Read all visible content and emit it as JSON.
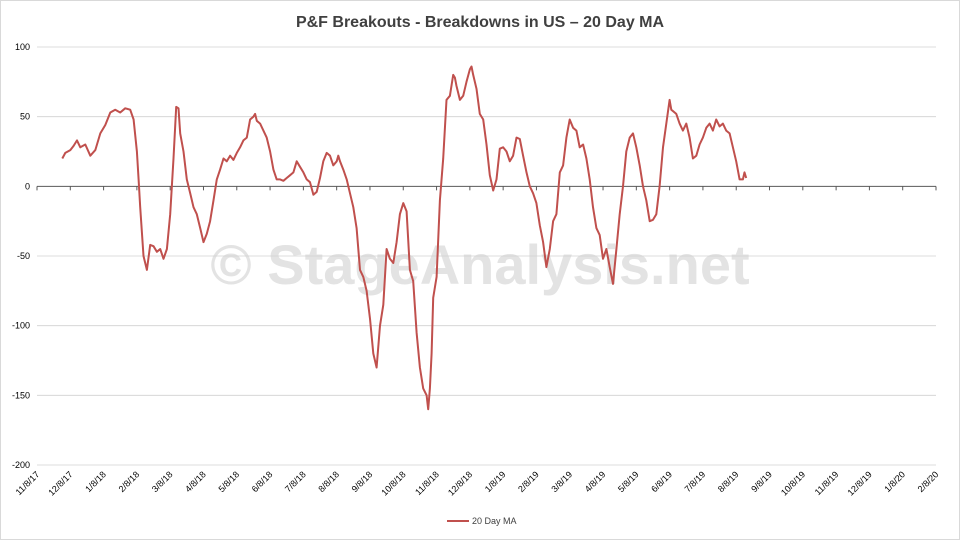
{
  "chart_data": {
    "type": "line",
    "title": "P&F Breakouts - Breakdowns in US – 20 Day MA",
    "xlabel": "",
    "ylabel": "",
    "ylim": [
      -200,
      100
    ],
    "yticks": [
      100,
      50,
      0,
      -50,
      -100,
      -150,
      -200
    ],
    "xticks": [
      "11/8/17",
      "12/8/17",
      "1/8/18",
      "2/8/18",
      "3/8/18",
      "4/8/18",
      "5/8/18",
      "6/8/18",
      "7/8/18",
      "8/8/18",
      "9/8/18",
      "10/8/18",
      "11/8/18",
      "12/8/18",
      "1/8/19",
      "2/8/19",
      "3/8/19",
      "4/8/19",
      "5/8/19",
      "6/8/19",
      "7/8/19",
      "8/8/19",
      "9/8/19",
      "10/8/19",
      "11/8/19",
      "12/8/19",
      "1/8/20",
      "2/8/20"
    ],
    "grid": "horizontal",
    "legend_position": "bottom",
    "watermark": "© StageAnalysis.net",
    "line_color": "#c0504d",
    "series": [
      {
        "name": "20 Day MA",
        "points": [
          [
            0.76,
            20
          ],
          [
            0.85,
            24
          ],
          [
            1.0,
            26
          ],
          [
            1.1,
            29
          ],
          [
            1.2,
            33
          ],
          [
            1.3,
            28
          ],
          [
            1.45,
            30
          ],
          [
            1.6,
            22
          ],
          [
            1.75,
            26
          ],
          [
            1.9,
            38
          ],
          [
            2.05,
            44
          ],
          [
            2.2,
            53
          ],
          [
            2.35,
            55
          ],
          [
            2.5,
            53
          ],
          [
            2.65,
            56
          ],
          [
            2.8,
            55
          ],
          [
            2.9,
            48
          ],
          [
            3.0,
            25
          ],
          [
            3.05,
            5
          ],
          [
            3.1,
            -15
          ],
          [
            3.2,
            -50
          ],
          [
            3.3,
            -60
          ],
          [
            3.4,
            -42
          ],
          [
            3.5,
            -43
          ],
          [
            3.6,
            -47
          ],
          [
            3.7,
            -45
          ],
          [
            3.8,
            -52
          ],
          [
            3.9,
            -45
          ],
          [
            4.0,
            -20
          ],
          [
            4.1,
            20
          ],
          [
            4.18,
            57
          ],
          [
            4.25,
            56
          ],
          [
            4.3,
            38
          ],
          [
            4.4,
            25
          ],
          [
            4.5,
            5
          ],
          [
            4.6,
            -5
          ],
          [
            4.7,
            -15
          ],
          [
            4.8,
            -20
          ],
          [
            4.9,
            -30
          ],
          [
            5.0,
            -40
          ],
          [
            5.1,
            -34
          ],
          [
            5.2,
            -25
          ],
          [
            5.3,
            -10
          ],
          [
            5.4,
            5
          ],
          [
            5.5,
            12
          ],
          [
            5.6,
            20
          ],
          [
            5.7,
            18
          ],
          [
            5.8,
            22
          ],
          [
            5.9,
            19
          ],
          [
            6.0,
            24
          ],
          [
            6.1,
            28
          ],
          [
            6.2,
            33
          ],
          [
            6.3,
            35
          ],
          [
            6.4,
            48
          ],
          [
            6.5,
            50
          ],
          [
            6.55,
            52
          ],
          [
            6.6,
            47
          ],
          [
            6.7,
            45
          ],
          [
            6.8,
            40
          ],
          [
            6.9,
            35
          ],
          [
            7.0,
            25
          ],
          [
            7.1,
            12
          ],
          [
            7.2,
            5
          ],
          [
            7.3,
            5
          ],
          [
            7.4,
            4
          ],
          [
            7.5,
            6
          ],
          [
            7.6,
            8
          ],
          [
            7.7,
            10
          ],
          [
            7.8,
            18
          ],
          [
            7.9,
            14
          ],
          [
            8.0,
            10
          ],
          [
            8.1,
            5
          ],
          [
            8.2,
            3
          ],
          [
            8.3,
            -6
          ],
          [
            8.4,
            -4
          ],
          [
            8.5,
            6
          ],
          [
            8.6,
            18
          ],
          [
            8.7,
            24
          ],
          [
            8.8,
            22
          ],
          [
            8.9,
            15
          ],
          [
            9.0,
            18
          ],
          [
            9.05,
            22
          ],
          [
            9.1,
            18
          ],
          [
            9.2,
            12
          ],
          [
            9.3,
            5
          ],
          [
            9.4,
            -5
          ],
          [
            9.5,
            -15
          ],
          [
            9.6,
            -30
          ],
          [
            9.7,
            -60
          ],
          [
            9.8,
            -65
          ],
          [
            9.9,
            -75
          ],
          [
            10.0,
            -95
          ],
          [
            10.1,
            -120
          ],
          [
            10.2,
            -130
          ],
          [
            10.3,
            -100
          ],
          [
            10.4,
            -85
          ],
          [
            10.5,
            -45
          ],
          [
            10.6,
            -52
          ],
          [
            10.7,
            -55
          ],
          [
            10.8,
            -40
          ],
          [
            10.9,
            -20
          ],
          [
            11.0,
            -12
          ],
          [
            11.1,
            -18
          ],
          [
            11.2,
            -60
          ],
          [
            11.3,
            -68
          ],
          [
            11.4,
            -105
          ],
          [
            11.5,
            -130
          ],
          [
            11.6,
            -145
          ],
          [
            11.7,
            -150
          ],
          [
            11.75,
            -160
          ],
          [
            11.8,
            -145
          ],
          [
            11.85,
            -120
          ],
          [
            11.9,
            -80
          ],
          [
            12.0,
            -65
          ],
          [
            12.1,
            -10
          ],
          [
            12.2,
            20
          ],
          [
            12.3,
            62
          ],
          [
            12.4,
            65
          ],
          [
            12.5,
            80
          ],
          [
            12.55,
            78
          ],
          [
            12.6,
            72
          ],
          [
            12.7,
            62
          ],
          [
            12.8,
            65
          ],
          [
            12.9,
            75
          ],
          [
            13.0,
            84
          ],
          [
            13.05,
            86
          ],
          [
            13.1,
            80
          ],
          [
            13.2,
            70
          ],
          [
            13.3,
            52
          ],
          [
            13.4,
            48
          ],
          [
            13.5,
            30
          ],
          [
            13.6,
            8
          ],
          [
            13.7,
            -3
          ],
          [
            13.8,
            5
          ],
          [
            13.9,
            27
          ],
          [
            14.0,
            28
          ],
          [
            14.1,
            25
          ],
          [
            14.2,
            18
          ],
          [
            14.3,
            22
          ],
          [
            14.4,
            35
          ],
          [
            14.5,
            34
          ],
          [
            14.6,
            22
          ],
          [
            14.7,
            10
          ],
          [
            14.8,
            0
          ],
          [
            14.9,
            -5
          ],
          [
            15.0,
            -12
          ],
          [
            15.1,
            -28
          ],
          [
            15.2,
            -40
          ],
          [
            15.3,
            -58
          ],
          [
            15.4,
            -45
          ],
          [
            15.5,
            -25
          ],
          [
            15.6,
            -20
          ],
          [
            15.7,
            10
          ],
          [
            15.8,
            15
          ],
          [
            15.9,
            35
          ],
          [
            16.0,
            48
          ],
          [
            16.1,
            42
          ],
          [
            16.2,
            40
          ],
          [
            16.3,
            28
          ],
          [
            16.4,
            30
          ],
          [
            16.5,
            20
          ],
          [
            16.6,
            5
          ],
          [
            16.7,
            -15
          ],
          [
            16.8,
            -30
          ],
          [
            16.9,
            -35
          ],
          [
            17.0,
            -52
          ],
          [
            17.1,
            -45
          ],
          [
            17.2,
            -58
          ],
          [
            17.3,
            -70
          ],
          [
            17.4,
            -45
          ],
          [
            17.5,
            -20
          ],
          [
            17.6,
            0
          ],
          [
            17.7,
            25
          ],
          [
            17.8,
            35
          ],
          [
            17.9,
            38
          ],
          [
            18.0,
            28
          ],
          [
            18.1,
            15
          ],
          [
            18.2,
            0
          ],
          [
            18.3,
            -10
          ],
          [
            18.4,
            -25
          ],
          [
            18.5,
            -24
          ],
          [
            18.6,
            -20
          ],
          [
            18.7,
            0
          ],
          [
            18.8,
            28
          ],
          [
            18.9,
            45
          ],
          [
            19.0,
            62
          ],
          [
            19.05,
            55
          ],
          [
            19.2,
            52
          ],
          [
            19.3,
            45
          ],
          [
            19.4,
            40
          ],
          [
            19.5,
            45
          ],
          [
            19.6,
            35
          ],
          [
            19.7,
            20
          ],
          [
            19.8,
            22
          ],
          [
            19.9,
            30
          ],
          [
            20.0,
            35
          ],
          [
            20.1,
            42
          ],
          [
            20.2,
            45
          ],
          [
            20.3,
            40
          ],
          [
            20.4,
            48
          ],
          [
            20.5,
            43
          ],
          [
            20.6,
            45
          ],
          [
            20.7,
            40
          ],
          [
            20.8,
            38
          ],
          [
            20.9,
            28
          ],
          [
            21.0,
            18
          ],
          [
            21.1,
            5
          ],
          [
            21.2,
            5
          ],
          [
            21.25,
            10
          ],
          [
            21.3,
            6
          ]
        ]
      }
    ]
  }
}
